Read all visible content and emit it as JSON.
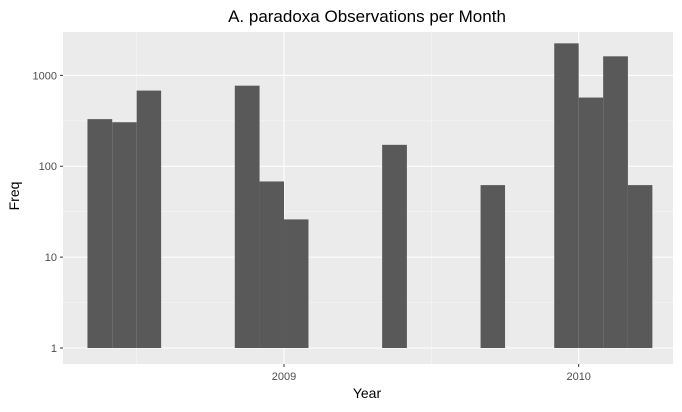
{
  "chart_data": {
    "type": "bar",
    "title": "A. paradoxa Observations per Month",
    "xlabel": "Year",
    "ylabel": "Freq",
    "y_scale": "log10",
    "ylim": [
      1,
      3000
    ],
    "y_ticks": [
      1,
      10,
      100,
      1000
    ],
    "y_tick_labels": [
      "1",
      "10",
      "100",
      "1000"
    ],
    "x_ticks": [
      2009,
      2010
    ],
    "x_tick_labels": [
      "2009",
      "2010"
    ],
    "xlim": [
      2008.25,
      2010.32
    ],
    "bar_color": "#595959",
    "panel_background": "#ebebeb",
    "grid": true,
    "bars": [
      {
        "x_start": 2008.333,
        "x_end": 2008.417,
        "value": 330
      },
      {
        "x_start": 2008.417,
        "x_end": 2008.5,
        "value": 305
      },
      {
        "x_start": 2008.5,
        "x_end": 2008.583,
        "value": 680
      },
      {
        "x_start": 2008.833,
        "x_end": 2008.917,
        "value": 770
      },
      {
        "x_start": 2008.917,
        "x_end": 2009.0,
        "value": 68
      },
      {
        "x_start": 2009.0,
        "x_end": 2009.083,
        "value": 26
      },
      {
        "x_start": 2009.333,
        "x_end": 2009.417,
        "value": 172
      },
      {
        "x_start": 2009.667,
        "x_end": 2009.75,
        "value": 62
      },
      {
        "x_start": 2009.917,
        "x_end": 2010.0,
        "value": 2250
      },
      {
        "x_start": 2010.0,
        "x_end": 2010.083,
        "value": 570
      },
      {
        "x_start": 2010.083,
        "x_end": 2010.167,
        "value": 1620
      },
      {
        "x_start": 2010.167,
        "x_end": 2010.25,
        "value": 62
      }
    ]
  }
}
